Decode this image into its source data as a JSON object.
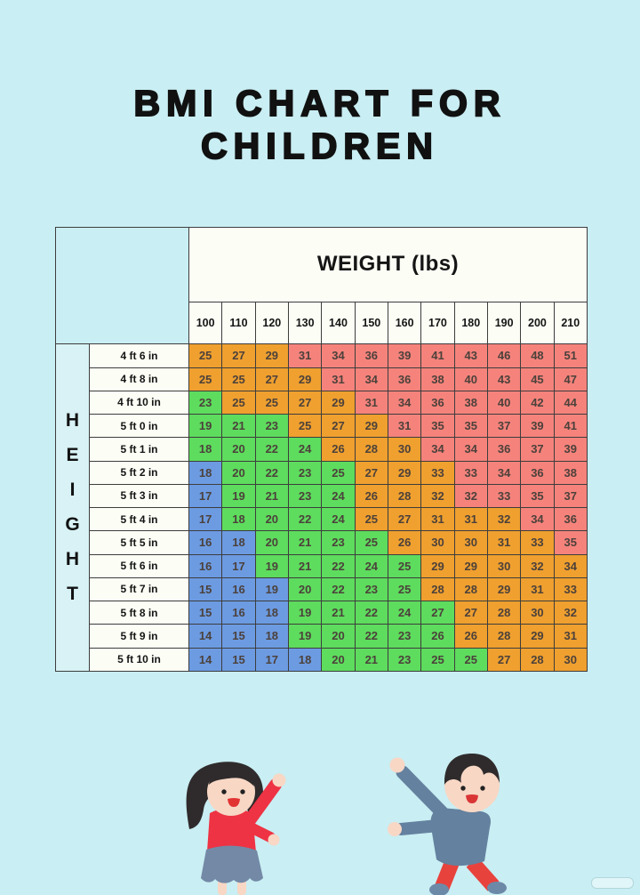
{
  "title": {
    "line1": "BMI CHART FOR",
    "line2": "CHILDREN"
  },
  "chart_data": {
    "type": "table",
    "title": "BMI CHART FOR CHILDREN",
    "x_header": "WEIGHT (lbs)",
    "y_header": "HEIGHT",
    "columns": [
      "100",
      "110",
      "120",
      "130",
      "140",
      "150",
      "160",
      "170",
      "180",
      "190",
      "200",
      "210"
    ],
    "color_key": {
      "b": "#6c9be2",
      "g": "#5edc5e",
      "o": "#efa02f",
      "r": "#f5837c"
    },
    "rows": [
      {
        "label": "4 ft 6 in",
        "values": [
          25,
          27,
          29,
          31,
          34,
          36,
          39,
          41,
          43,
          46,
          48,
          51
        ],
        "colors": "ooorrrrrrrrr"
      },
      {
        "label": "4 ft 8 in",
        "values": [
          25,
          25,
          27,
          29,
          31,
          34,
          36,
          38,
          40,
          43,
          45,
          47
        ],
        "colors": "oooorrrrrrrr"
      },
      {
        "label": "4 ft 10 in",
        "values": [
          23,
          25,
          25,
          27,
          29,
          31,
          34,
          36,
          38,
          40,
          42,
          44
        ],
        "colors": "goooorrrrrrr"
      },
      {
        "label": "5 ft 0 in",
        "values": [
          19,
          21,
          23,
          25,
          27,
          29,
          31,
          35,
          35,
          37,
          39,
          41
        ],
        "colors": "gggooorrrrrr"
      },
      {
        "label": "5 ft 1 in",
        "values": [
          18,
          20,
          22,
          24,
          26,
          28,
          30,
          34,
          34,
          36,
          37,
          39
        ],
        "colors": "ggggooorrrrr"
      },
      {
        "label": "5 ft 2 in",
        "values": [
          18,
          20,
          22,
          23,
          25,
          27,
          29,
          33,
          33,
          34,
          36,
          38
        ],
        "colors": "bggggooorrrr"
      },
      {
        "label": "5 ft 3 in",
        "values": [
          17,
          19,
          21,
          23,
          24,
          26,
          28,
          32,
          32,
          33,
          35,
          37
        ],
        "colors": "bggggooorrrr"
      },
      {
        "label": "5 ft 4 in",
        "values": [
          17,
          18,
          20,
          22,
          24,
          25,
          27,
          31,
          31,
          32,
          34,
          36
        ],
        "colors": "bggggooooorr"
      },
      {
        "label": "5 ft 5 in",
        "values": [
          16,
          18,
          20,
          21,
          23,
          25,
          26,
          30,
          30,
          31,
          33,
          35
        ],
        "colors": "bbggggooooor"
      },
      {
        "label": "5 ft 6 in",
        "values": [
          16,
          17,
          19,
          21,
          22,
          24,
          25,
          29,
          29,
          30,
          32,
          34
        ],
        "colors": "bbgggggooooo"
      },
      {
        "label": "5 ft 7 in",
        "values": [
          15,
          16,
          19,
          20,
          22,
          23,
          25,
          28,
          28,
          29,
          31,
          33
        ],
        "colors": "bbbggggooooo"
      },
      {
        "label": "5 ft 8 in",
        "values": [
          15,
          16,
          18,
          19,
          21,
          22,
          24,
          27,
          27,
          28,
          30,
          32
        ],
        "colors": "bbbgggggoooo"
      },
      {
        "label": "5 ft 9 in",
        "values": [
          14,
          15,
          18,
          19,
          20,
          22,
          23,
          26,
          26,
          28,
          29,
          31
        ],
        "colors": "bbbgggggoooo"
      },
      {
        "label": "5 ft 10 in",
        "values": [
          14,
          15,
          17,
          18,
          20,
          21,
          23,
          25,
          25,
          27,
          28,
          30
        ],
        "colors": "bbbbgggggooo"
      }
    ]
  },
  "decor": {
    "girl_illustration": "girl-child-waving",
    "boy_illustration": "boy-child-waving",
    "watermark": "faint-watermark-pill"
  }
}
